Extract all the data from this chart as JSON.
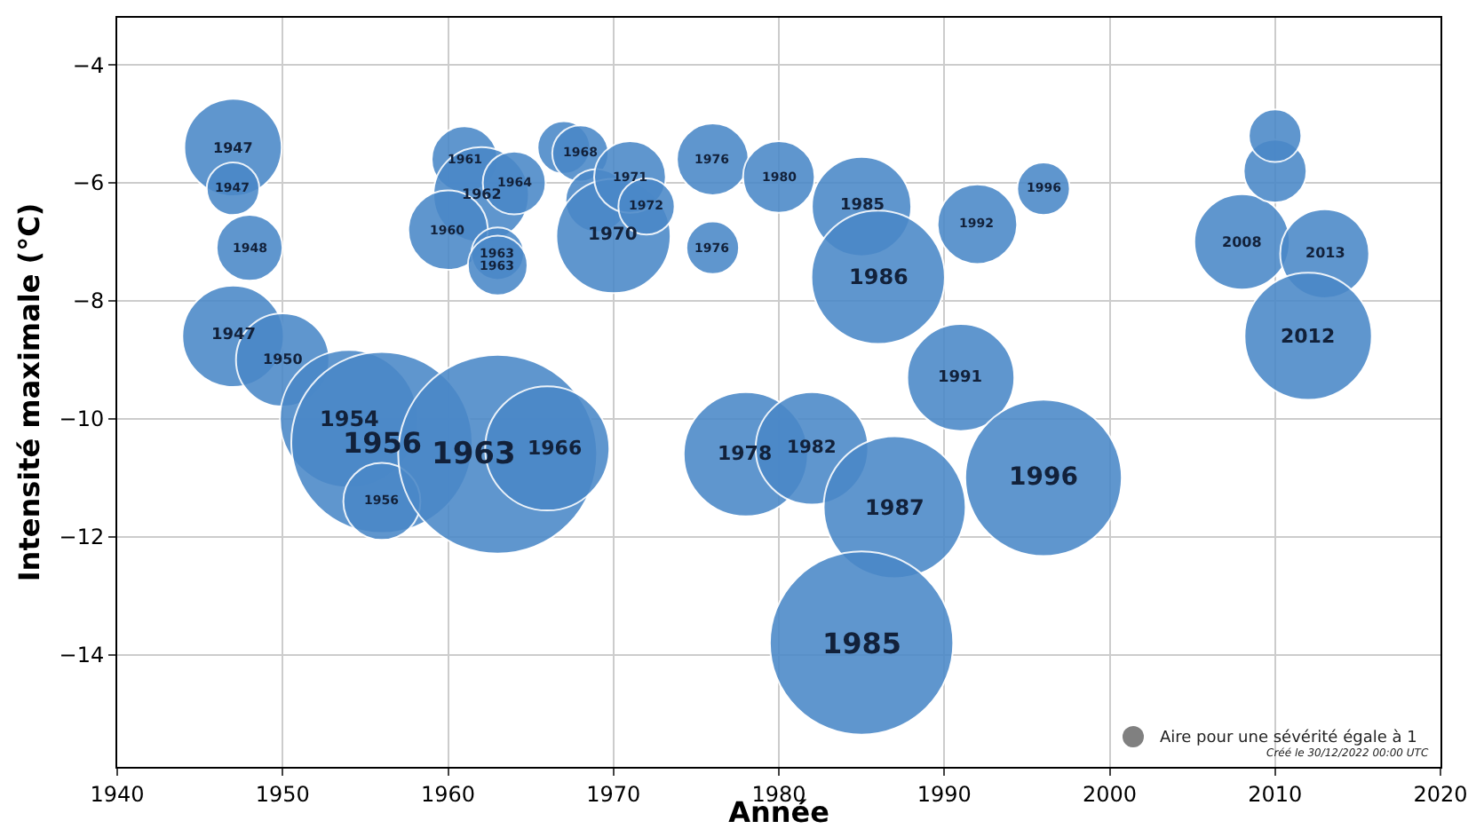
{
  "chart_data": {
    "type": "bubble",
    "xlabel": "Année",
    "ylabel": "Intensité maximale (°C)",
    "color": "#4a88c8",
    "x": [
      1947,
      1947,
      1948,
      1947,
      1950,
      1954,
      1956,
      1956,
      1963,
      1966,
      1961,
      1962,
      1964,
      1960,
      1963,
      1963,
      1967,
      1968,
      1969,
      1970,
      1971,
      1972,
      1976,
      1976,
      1980,
      1985,
      1986,
      1992,
      1996,
      2008,
      2010,
      2010,
      2013,
      2012,
      1991,
      1978,
      1982,
      1987,
      1996,
      1985
    ],
    "values": [
      -5.4,
      -6.1,
      -7.1,
      -8.6,
      -9.0,
      -10.0,
      -10.4,
      -11.4,
      -10.6,
      -10.5,
      -5.6,
      -6.2,
      -6.0,
      -6.8,
      -7.2,
      -7.4,
      -5.4,
      -5.5,
      -6.3,
      -6.9,
      -5.9,
      -6.4,
      -5.6,
      -7.1,
      -5.9,
      -6.4,
      -7.6,
      -6.7,
      -6.1,
      -7.0,
      -5.8,
      -5.2,
      -7.2,
      -8.6,
      -9.3,
      -10.6,
      -10.5,
      -11.5,
      -11.0,
      -13.8
    ],
    "sizes": [
      0.24,
      0.07,
      0.11,
      0.26,
      0.22,
      0.48,
      0.83,
      0.15,
      1,
      0.39,
      0.11,
      0.23,
      0.1,
      0.16,
      0.07,
      0.09,
      0.07,
      0.08,
      0.1,
      0.33,
      0.13,
      0.08,
      0.13,
      0.07,
      0.13,
      0.25,
      0.45,
      0.16,
      0.07,
      0.23,
      0.1,
      0.07,
      0.2,
      0.41,
      0.29,
      0.39,
      0.32,
      0.51,
      0.62,
      0.85
    ],
    "xlim": [
      1940,
      2020
    ],
    "xticks": [
      1940,
      1950,
      1960,
      1970,
      1980,
      1990,
      2000,
      2010,
      2020
    ],
    "ylim": [
      -15.9,
      -3.2
    ],
    "yticks": [
      -14,
      -12,
      -10,
      -8,
      -6,
      -4
    ],
    "grid": true,
    "annotations": [
      "Aire pour une sévérité égale à 1",
      "Créé le 30/12/2022 00:00 UTC",
      {
        "text": "1947",
        "x": 1947,
        "y": -5.4
      },
      {
        "text": "1947",
        "x": 1947,
        "y": -6.1
      },
      {
        "text": "1948",
        "x": 1948,
        "y": -7.1
      },
      {
        "text": "1947",
        "x": 1947,
        "y": -8.6
      },
      {
        "text": "1950",
        "x": 1950,
        "y": -9.0
      },
      {
        "text": "1954",
        "x": 1954,
        "y": -10.0
      },
      {
        "text": "1956",
        "x": 1956,
        "y": -10.4
      },
      {
        "text": "1956",
        "x": 1956,
        "y": -11.4
      },
      {
        "text": "1963",
        "x": 1961.5,
        "y": -10.6
      },
      {
        "text": "1966",
        "x": 1966.5,
        "y": -10.5
      },
      {
        "text": "1961",
        "x": 1961,
        "y": -5.6
      },
      {
        "text": "1962",
        "x": 1962,
        "y": -6.2
      },
      {
        "text": "1964",
        "x": 1964,
        "y": -6.0
      },
      {
        "text": "1960",
        "x": 1960,
        "y": -6.8
      },
      {
        "text": "1963",
        "x": 1963,
        "y": -7.2
      },
      {
        "text": "1963",
        "x": 1963,
        "y": -7.4
      },
      {
        "text": "1968",
        "x": 1968,
        "y": -5.5
      },
      {
        "text": "1970",
        "x": 1970,
        "y": -6.9
      },
      {
        "text": "1971",
        "x": 1971,
        "y": -5.9
      },
      {
        "text": "1972",
        "x": 1972,
        "y": -6.4
      },
      {
        "text": "1976",
        "x": 1976,
        "y": -5.6
      },
      {
        "text": "1976",
        "x": 1976,
        "y": -7.1
      },
      {
        "text": "1980",
        "x": 1980,
        "y": -5.9
      },
      {
        "text": "1985",
        "x": 1985,
        "y": -6.4
      },
      {
        "text": "1986",
        "x": 1986,
        "y": -7.6
      },
      {
        "text": "1992",
        "x": 1992,
        "y": -6.7
      },
      {
        "text": "1996",
        "x": 1996,
        "y": -6.1
      },
      {
        "text": "2008",
        "x": 2008,
        "y": -7.0
      },
      {
        "text": "2013",
        "x": 2013,
        "y": -7.2
      },
      {
        "text": "2012",
        "x": 2012,
        "y": -8.6
      },
      {
        "text": "1991",
        "x": 1991,
        "y": -9.3
      },
      {
        "text": "1978",
        "x": 1978,
        "y": -10.6
      },
      {
        "text": "1982",
        "x": 1982,
        "y": -10.5
      },
      {
        "text": "1987",
        "x": 1987,
        "y": -11.5
      },
      {
        "text": "1996",
        "x": 1996,
        "y": -11.0
      },
      {
        "text": "1985",
        "x": 1985,
        "y": -13.8
      }
    ]
  }
}
